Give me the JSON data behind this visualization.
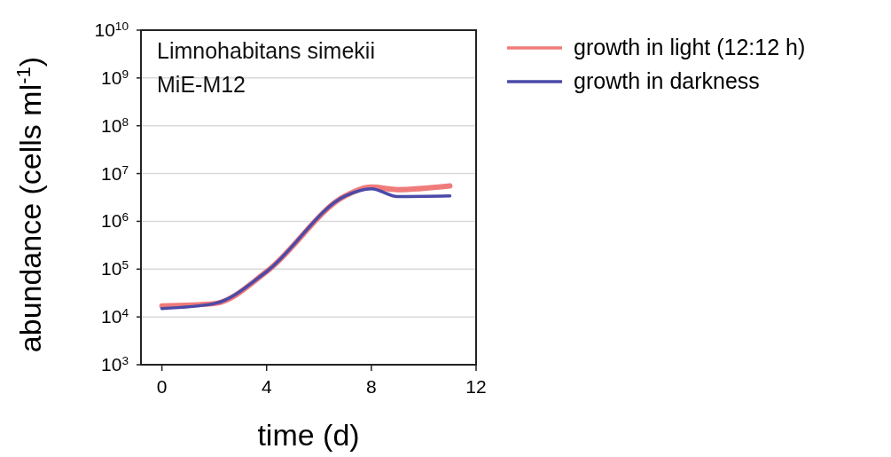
{
  "chart_data": {
    "type": "line",
    "xlabel": "time (d)",
    "ylabel": "abundance (cells ml$^{-1}$)",
    "annotations": [
      "Limnohabitans simekii MiE-M12"
    ],
    "log": "y",
    "grid": "y",
    "legend": "top right",
    "line_style": "solid",
    "xlim": [
      -0.8,
      12
    ],
    "xticks": [
      0,
      4,
      8,
      12
    ],
    "ylim": [
      1000,
      10000000000
    ],
    "yticks": [
      {
        "value": 1000,
        "label": "10$^{3}$"
      },
      {
        "value": 10000,
        "label": "10$^{4}$"
      },
      {
        "value": 100000,
        "label": "10$^{5}$"
      },
      {
        "value": 1000000,
        "label": "10$^{6}$"
      },
      {
        "value": 10000000,
        "label": "10$^{7}$"
      },
      {
        "value": 100000000,
        "label": "10$^{8}$"
      },
      {
        "value": 1000000000,
        "label": "10$^{9}$"
      },
      {
        "value": 10000000000,
        "label": "10$^{10}$"
      }
    ],
    "x": [
      0,
      2,
      4,
      7,
      8,
      9,
      11
    ],
    "series": [
      {
        "name": "growth in light (12:12 h)",
        "color": "#f07b7b",
        "values": [
          17000,
          19000,
          89000,
          3400000,
          5200000,
          4600000,
          5500000
        ]
      },
      {
        "name": "growth in darkness",
        "color": "#4a4aa8",
        "values": [
          15000,
          19000,
          89000,
          3400000,
          4800000,
          3300000,
          3400000
        ]
      }
    ]
  }
}
